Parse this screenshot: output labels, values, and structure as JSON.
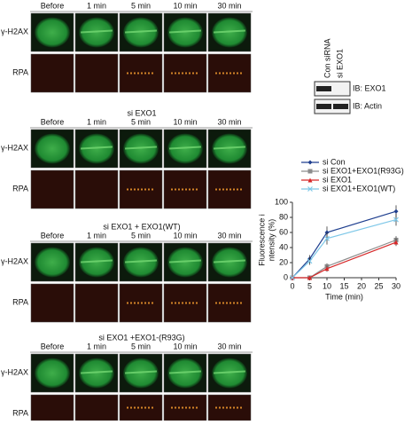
{
  "panels": [
    {
      "columns": [
        "Before",
        "1 min",
        "5 min",
        "10 min",
        "30 min"
      ],
      "rows": [
        "γ-H2AX",
        "RPA"
      ]
    },
    {
      "title": "si EXO1",
      "columns": [
        "Before",
        "1 min",
        "5 min",
        "10 min",
        "30 min"
      ],
      "rows": [
        "γ-H2AX",
        "RPA"
      ]
    },
    {
      "title": "si EXO1 + EXO1(WT)",
      "columns": [
        "Before",
        "1 min",
        "5 min",
        "10 min",
        "30 min"
      ],
      "rows": [
        "γ-H2AX",
        "RPA"
      ]
    },
    {
      "title": "si EXO1 +EXO1-(R93G)",
      "columns": [
        "Before",
        "1 min",
        "5 min",
        "10 min",
        "30 min"
      ],
      "rows": [
        "γ-H2AX",
        "RPA"
      ]
    }
  ],
  "blot": {
    "lanes": [
      "Con siRNA",
      "si EXO1"
    ],
    "bands": [
      "IB: EXO1",
      "IB: Actin"
    ]
  },
  "chart_data": {
    "type": "line",
    "ylabel": [
      "Fluorescence i",
      "ntensity  (%)"
    ],
    "xlabel": "Time (min)",
    "x": [
      0,
      5,
      10,
      30
    ],
    "xlim": [
      0,
      30
    ],
    "ylim": [
      0,
      100
    ],
    "xticks": [
      0,
      5,
      10,
      15,
      20,
      25,
      30
    ],
    "yticks": [
      0,
      20,
      40,
      60,
      80,
      100
    ],
    "series": [
      {
        "name": "si Con",
        "color": "#1f3f8f",
        "values": [
          0,
          25,
          60,
          88
        ],
        "errors": [
          0,
          5,
          8,
          8
        ]
      },
      {
        "name": "si EXO1+EXO1(R93G)",
        "color": "#8c8c8c",
        "values": [
          0,
          0,
          15,
          50
        ],
        "errors": [
          0,
          0,
          4,
          5
        ]
      },
      {
        "name": "si EXO1",
        "color": "#d62728",
        "values": [
          0,
          0,
          12,
          47
        ],
        "errors": [
          0,
          0,
          4,
          5
        ]
      },
      {
        "name": "si EXO1+EXO1(WT)",
        "color": "#7fc8e8",
        "values": [
          0,
          22,
          52,
          77
        ],
        "errors": [
          0,
          5,
          8,
          8
        ]
      }
    ]
  }
}
